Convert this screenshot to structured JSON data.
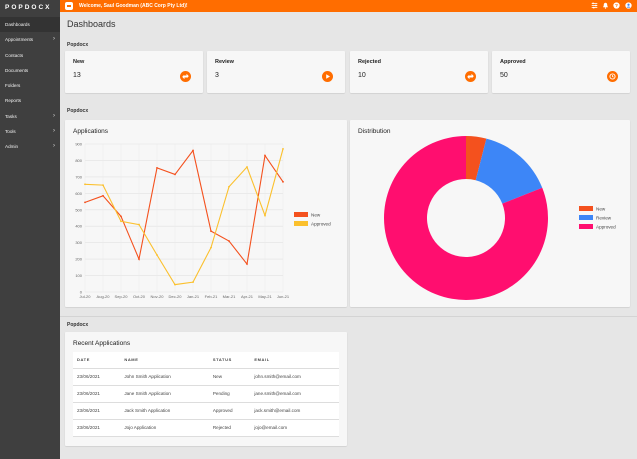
{
  "app": {
    "brand": "POPDOCX",
    "welcome": "Welcome, Saul Goodman (ABC Corp Pty Ltd)!"
  },
  "sidebar": {
    "items": [
      {
        "label": "Dashboards",
        "has_chevron": false
      },
      {
        "label": "Appointments",
        "has_chevron": true
      },
      {
        "label": "Contacts",
        "has_chevron": false
      },
      {
        "label": "Documents",
        "has_chevron": false
      },
      {
        "label": "Folders",
        "has_chevron": false
      },
      {
        "label": "Reports",
        "has_chevron": false
      },
      {
        "label": "Tasks",
        "has_chevron": true
      },
      {
        "label": "Tools",
        "has_chevron": true
      },
      {
        "label": "Admin",
        "has_chevron": true
      }
    ]
  },
  "topbar_icons": [
    "filter-icon",
    "bell-icon",
    "help-icon",
    "user-icon"
  ],
  "page": {
    "title": "Dashboards"
  },
  "section1": {
    "label": "Popdocx"
  },
  "section2": {
    "label": "Popdocx"
  },
  "section3": {
    "label": "Popdocx"
  },
  "stats": [
    {
      "label": "New",
      "value": "13",
      "icon": "swap-icon"
    },
    {
      "label": "Review",
      "value": "3",
      "icon": "play-icon"
    },
    {
      "label": "Rejected",
      "value": "10",
      "icon": "swap-icon"
    },
    {
      "label": "Approved",
      "value": "50",
      "icon": "clock-icon"
    }
  ],
  "colors": {
    "accent": "#ff6d00",
    "new": "#f4511e",
    "approved": "#fbc02d",
    "review": "#3d86f7",
    "approved_pie": "#ff0e6f"
  },
  "applications_chart": {
    "title": "Applications",
    "chart_data": {
      "type": "line",
      "categories": [
        "Jul-20",
        "Aug-20",
        "Sep-20",
        "Oct-20",
        "Nov-20",
        "Dec-20",
        "Jan-21",
        "Feb-21",
        "Mar-21",
        "Apr-21",
        "May-21",
        "Jun-21"
      ],
      "series": [
        {
          "name": "New",
          "values": [
            545,
            585,
            460,
            200,
            755,
            715,
            860,
            370,
            310,
            170,
            830,
            670
          ]
        },
        {
          "name": "Approved",
          "values": [
            655,
            650,
            430,
            410,
            225,
            45,
            60,
            270,
            640,
            760,
            465,
            870
          ]
        }
      ],
      "ylim": [
        0,
        900
      ],
      "yticks": [
        0,
        100,
        200,
        300,
        400,
        500,
        600,
        700,
        800,
        900
      ],
      "legend": "right"
    }
  },
  "distribution_chart": {
    "title": "Distribution",
    "chart_data": {
      "type": "pie",
      "categories": [
        "New",
        "Review",
        "Approved"
      ],
      "values": [
        4,
        15,
        81
      ],
      "legend": "right"
    }
  },
  "recent": {
    "title": "Recent Applications",
    "columns": [
      "DATE",
      "NAME",
      "STATUS",
      "EMAIL"
    ],
    "rows": [
      [
        "23/06/2021",
        "John Smith Application",
        "New",
        "john.smith@email.com"
      ],
      [
        "23/06/2021",
        "Jane Smith Application",
        "Pending",
        "jane.smith@email.com"
      ],
      [
        "23/06/2021",
        "Jack Smith Application",
        "Approved",
        "jack.smith@email.com"
      ],
      [
        "23/06/2021",
        "Jojo Application",
        "Rejected",
        "jojo@email.com"
      ]
    ]
  }
}
